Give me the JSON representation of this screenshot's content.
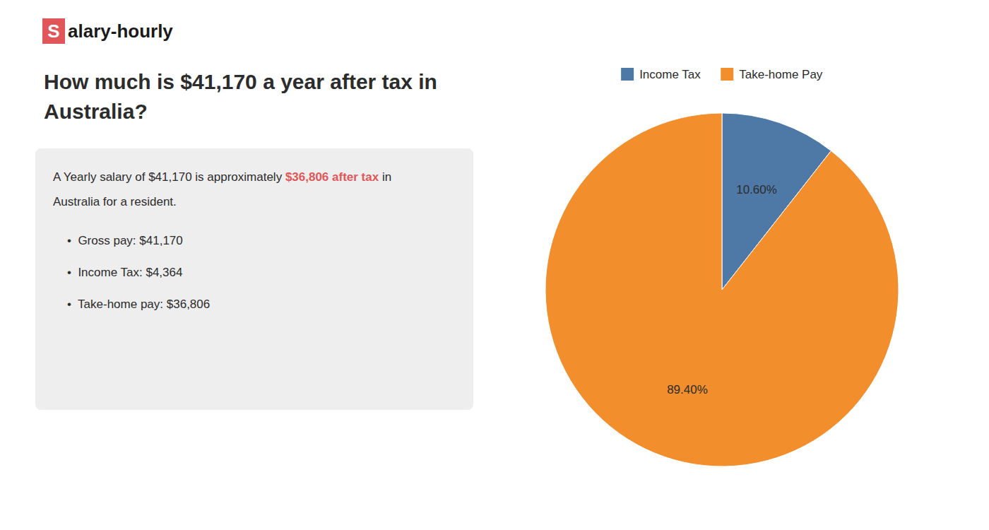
{
  "chart_data": {
    "type": "pie",
    "title": [
      "How much is $41,170 a year after tax in",
      "Australia?"
    ],
    "annotations": [
      "S",
      "alary-hourly",
      "A Yearly salary of $41,170 is approximately ",
      "$36,806 after tax",
      " in",
      "Australia for a resident.",
      "•  Gross pay: $41,170",
      "•  Income Tax: $4,364",
      "•  Take-home pay: $36,806"
    ],
    "categories": [
      "Income Tax",
      "Take-home Pay"
    ],
    "values": [
      10.6,
      89.4
    ],
    "value_labels": [
      "10.60%",
      "89.40%"
    ],
    "data_labels": true,
    "legend": "top"
  }
}
